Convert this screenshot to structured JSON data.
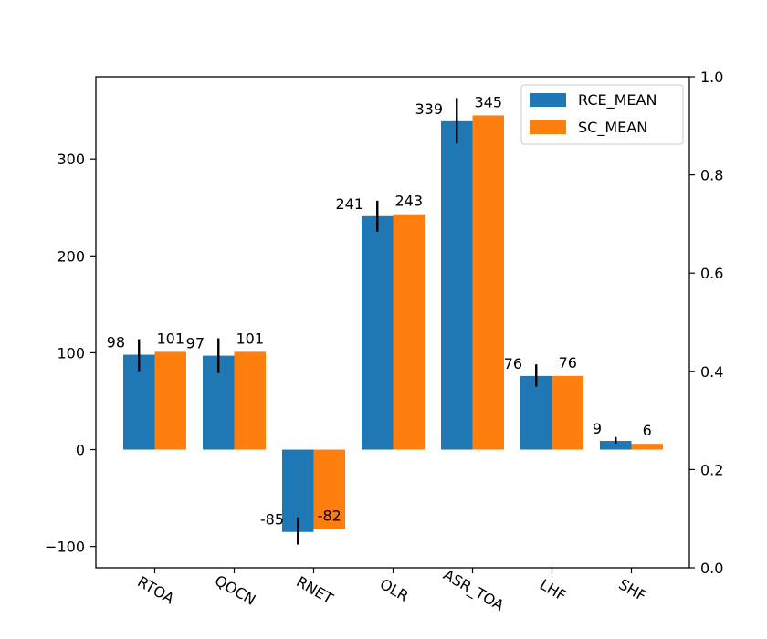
{
  "chart_data": {
    "type": "bar",
    "categories": [
      "RTOA",
      "QOCN",
      "RNET",
      "OLR",
      "ASR_TOA",
      "LHF",
      "SHF"
    ],
    "series": [
      {
        "name": "RCE_MEAN",
        "color": "#1f77b4",
        "values": [
          98,
          97,
          -85,
          241,
          339,
          76,
          9
        ],
        "error": [
          [
            81,
            114
          ],
          [
            79,
            115
          ],
          [
            -98,
            -70
          ],
          [
            225,
            257
          ],
          [
            316,
            363
          ],
          [
            65,
            88
          ],
          [
            6,
            13
          ]
        ],
        "labels": [
          "98",
          "97",
          "-85",
          "241",
          "339",
          "76",
          "9"
        ]
      },
      {
        "name": "SC_MEAN",
        "color": "#ff7f0e",
        "values": [
          101,
          101,
          -82,
          243,
          345,
          76,
          6
        ],
        "labels": [
          "101",
          "101",
          "-82",
          "243",
          "345",
          "76",
          "6"
        ]
      }
    ],
    "ylim": [
      -122,
      385
    ],
    "yticks": [
      -100,
      0,
      100,
      200,
      300
    ],
    "ytick_labels": [
      "−100",
      "0",
      "100",
      "200",
      "300"
    ],
    "y2lim": [
      0.0,
      1.0
    ],
    "y2ticks": [
      0.0,
      0.2,
      0.4,
      0.6,
      0.8,
      1.0
    ],
    "y2tick_labels": [
      "0.0",
      "0.2",
      "0.4",
      "0.6",
      "0.8",
      "1.0"
    ],
    "xlabel": "",
    "ylabel": "",
    "legend_position": "top-right",
    "grid": false
  }
}
